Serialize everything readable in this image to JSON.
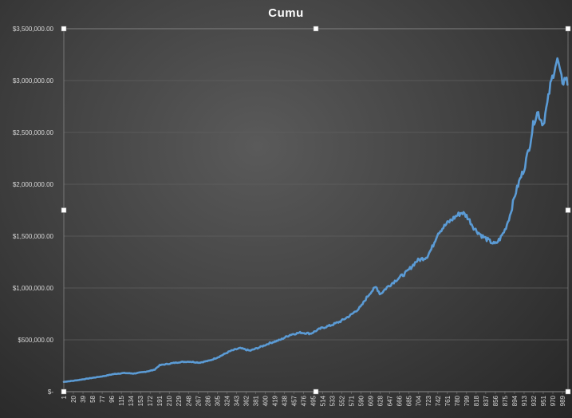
{
  "chart_data": {
    "type": "line",
    "title": "Cumu",
    "xlabel": "",
    "ylabel": "",
    "ylim": [
      0,
      3500000
    ],
    "xlim": [
      1,
      1000
    ],
    "grid": true,
    "legend": "none",
    "colors": {
      "line": "#5b9bd5",
      "grid": "#5f5f5f",
      "text": "#d9d9d9",
      "background": "#3f3f3f"
    },
    "y_tick_labels": [
      "$-",
      "$500,000.00",
      "$1,000,000.00",
      "$1,500,000.00",
      "$2,000,000.00",
      "$2,500,000.00",
      "$3,000,000.00",
      "$3,500,000.00"
    ],
    "y_tick_values": [
      0,
      500000,
      1000000,
      1500000,
      2000000,
      2500000,
      3000000,
      3500000
    ],
    "x_tick_labels": [
      "1",
      "20",
      "39",
      "58",
      "77",
      "96",
      "115",
      "134",
      "153",
      "172",
      "191",
      "210",
      "229",
      "248",
      "267",
      "286",
      "305",
      "324",
      "343",
      "362",
      "381",
      "400",
      "419",
      "438",
      "457",
      "476",
      "495",
      "514",
      "533",
      "552",
      "571",
      "590",
      "609",
      "628",
      "647",
      "666",
      "685",
      "704",
      "723",
      "742",
      "761",
      "780",
      "799",
      "818",
      "837",
      "856",
      "875",
      "894",
      "913",
      "932",
      "951",
      "970",
      "989"
    ],
    "series": [
      {
        "values_x": [
          1,
          20,
          40,
          60,
          80,
          100,
          120,
          140,
          160,
          180,
          191,
          210,
          230,
          250,
          270,
          290,
          310,
          330,
          350,
          370,
          390,
          410,
          430,
          450,
          470,
          490,
          510,
          530,
          550,
          570,
          590,
          600,
          609,
          620,
          628,
          640,
          660,
          680,
          700,
          720,
          730,
          742,
          760,
          780,
          790,
          800,
          815,
          830,
          845,
          856,
          866,
          875,
          885,
          895,
          905,
          913,
          925,
          932,
          940,
          945,
          951,
          960,
          965,
          970,
          975,
          980,
          985,
          990,
          995,
          1000
        ],
        "values_y": [
          95000,
          105000,
          120000,
          135000,
          150000,
          170000,
          180000,
          175000,
          190000,
          210000,
          255000,
          270000,
          285000,
          290000,
          280000,
          300000,
          340000,
          390000,
          420000,
          395000,
          430000,
          470000,
          500000,
          550000,
          570000,
          560000,
          610000,
          640000,
          680000,
          740000,
          820000,
          900000,
          960000,
          1010000,
          940000,
          1000000,
          1080000,
          1150000,
          1260000,
          1300000,
          1380000,
          1530000,
          1620000,
          1700000,
          1730000,
          1690000,
          1570000,
          1500000,
          1450000,
          1420000,
          1480000,
          1560000,
          1700000,
          1900000,
          2050000,
          2150000,
          2400000,
          2600000,
          2700000,
          2640000,
          2580000,
          2800000,
          2950000,
          3050000,
          3150000,
          3200000,
          3050000,
          2980000,
          3030000,
          2960000
        ]
      }
    ]
  }
}
